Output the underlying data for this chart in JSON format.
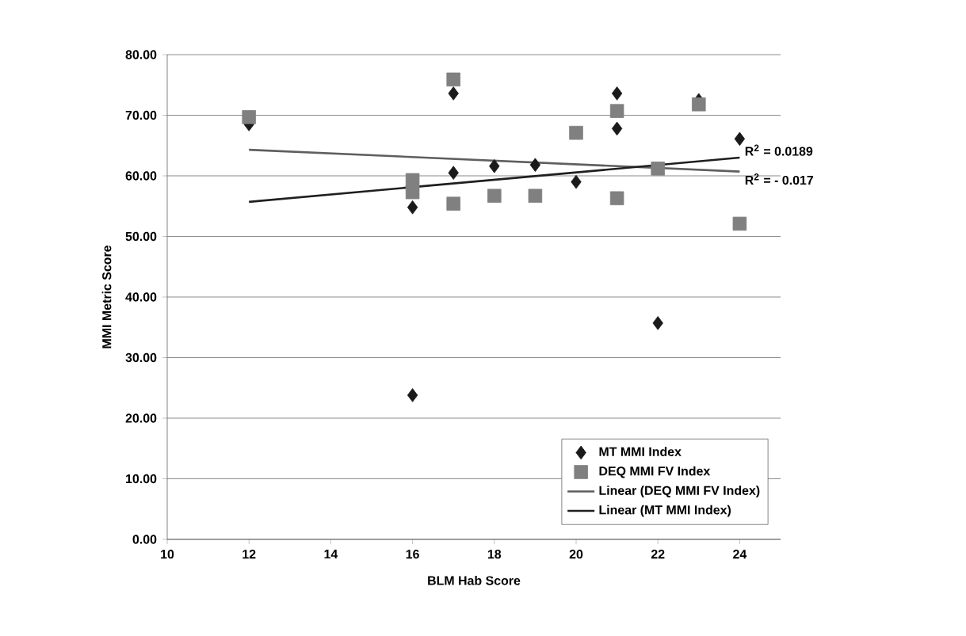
{
  "chart_data": {
    "type": "scatter",
    "xlabel": "BLM Hab Score",
    "ylabel": "MMI Metric Score",
    "xlim": [
      10,
      25
    ],
    "xticks": [
      10,
      12,
      14,
      16,
      18,
      20,
      22,
      24
    ],
    "ylim": [
      0,
      80
    ],
    "yticks": [
      {
        "value": 0,
        "label": "0.00"
      },
      {
        "value": 10,
        "label": "10.00"
      },
      {
        "value": 20,
        "label": "20.00"
      },
      {
        "value": 30,
        "label": "30.00"
      },
      {
        "value": 40,
        "label": "40.00"
      },
      {
        "value": 50,
        "label": "50.00"
      },
      {
        "value": 60,
        "label": "60.00"
      },
      {
        "value": 70,
        "label": "70.00"
      },
      {
        "value": 80,
        "label": "80.00"
      }
    ],
    "grid": "y",
    "legend": "bottom right",
    "series": [
      {
        "name": "MT MMI Index",
        "marker": "diamond",
        "color": "#1a1a1a",
        "x": [
          12,
          16,
          16,
          17,
          17,
          18,
          19,
          20,
          21,
          21,
          22,
          23,
          24
        ],
        "values": [
          68.5,
          54.8,
          23.8,
          73.6,
          60.5,
          61.6,
          61.8,
          59.0,
          73.6,
          67.8,
          35.7,
          72.5,
          66.1
        ]
      },
      {
        "name": "DEQ MMI FV Index",
        "marker": "square",
        "color": "#808080",
        "x": [
          12,
          16,
          16,
          17,
          17,
          18,
          19,
          20,
          21,
          21,
          22,
          23,
          24
        ],
        "values": [
          69.7,
          59.3,
          57.3,
          75.9,
          55.4,
          56.7,
          56.7,
          67.1,
          70.7,
          56.3,
          61.2,
          71.8,
          52.1
        ]
      },
      {
        "name": "Linear (DEQ MMI FV Index)",
        "type": "line",
        "marker": "none",
        "color": "#5f5f5f",
        "x": [
          12,
          24
        ],
        "values": [
          64.3,
          60.7
        ]
      },
      {
        "name": "Linear (MT MMI Index)",
        "type": "line",
        "marker": "none",
        "color": "#1f1f1f",
        "x": [
          12,
          24
        ],
        "values": [
          55.7,
          63.0
        ]
      }
    ],
    "annotations": [
      {
        "text": "R$^{2}$ = 0.0189",
        "x": 24,
        "y": 63.0
      },
      {
        "text": "R$^{2}$ = - 0.017",
        "x": 24,
        "y": 60.7
      }
    ]
  }
}
